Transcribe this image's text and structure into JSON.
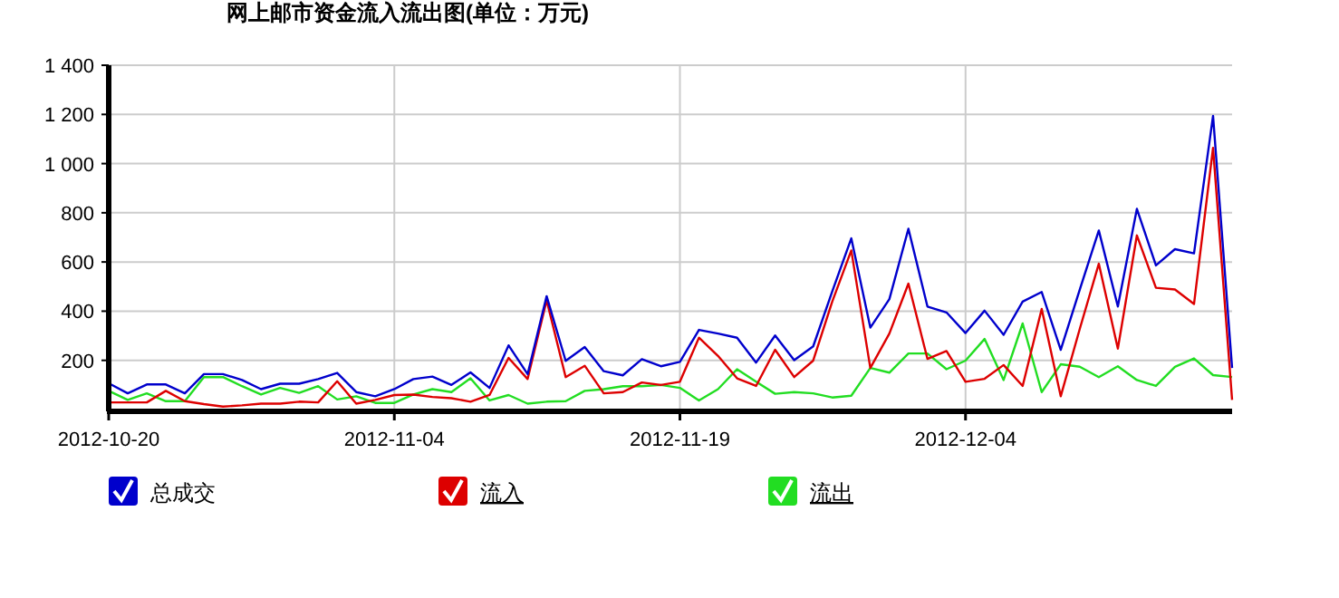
{
  "chart_data": {
    "type": "line",
    "title": "网上邮市资金流入流出图(单位：万元)",
    "x": [
      "2012-10-20",
      "2012-10-21",
      "2012-10-22",
      "2012-10-23",
      "2012-10-24",
      "2012-10-25",
      "2012-10-26",
      "2012-10-27",
      "2012-10-28",
      "2012-10-29",
      "2012-10-30",
      "2012-10-31",
      "2012-11-01",
      "2012-11-02",
      "2012-11-03",
      "2012-11-04",
      "2012-11-05",
      "2012-11-06",
      "2012-11-07",
      "2012-11-08",
      "2012-11-09",
      "2012-11-10",
      "2012-11-11",
      "2012-11-12",
      "2012-11-13",
      "2012-11-14",
      "2012-11-15",
      "2012-11-16",
      "2012-11-17",
      "2012-11-18",
      "2012-11-19",
      "2012-11-20",
      "2012-11-21",
      "2012-11-22",
      "2012-11-23",
      "2012-11-24",
      "2012-11-25",
      "2012-11-26",
      "2012-11-27",
      "2012-11-28",
      "2012-11-29",
      "2012-11-30",
      "2012-12-01",
      "2012-12-02",
      "2012-12-03",
      "2012-12-04",
      "2012-12-05",
      "2012-12-06",
      "2012-12-07",
      "2012-12-08",
      "2012-12-09",
      "2012-12-10",
      "2012-12-11",
      "2012-12-12",
      "2012-12-13",
      "2012-12-14",
      "2012-12-15",
      "2012-12-16",
      "2012-12-17",
      "2012-12-18"
    ],
    "series": [
      {
        "name": "总成交",
        "color": "#0000cc",
        "values": [
          107,
          66,
          102,
          102,
          66,
          144,
          144,
          120,
          83,
          105,
          105,
          124,
          149,
          71,
          54,
          83,
          124,
          134,
          100,
          151,
          88,
          261,
          144,
          461,
          198,
          254,
          156,
          139,
          205,
          176,
          194,
          324,
          309,
          292,
          191,
          301,
          201,
          257,
          480,
          696,
          333,
          449,
          735,
          419,
          395,
          311,
          402,
          304,
          439,
          478,
          243,
          488,
          728,
          419,
          816,
          586,
          652,
          635,
          1194,
          169
        ]
      },
      {
        "name": "流入",
        "color": "#dd0000",
        "values": [
          29,
          29,
          29,
          76,
          34,
          22,
          12,
          17,
          24,
          24,
          32,
          29,
          115,
          24,
          39,
          59,
          61,
          51,
          46,
          32,
          59,
          210,
          124,
          444,
          132,
          178,
          66,
          71,
          110,
          100,
          113,
          292,
          218,
          127,
          96,
          243,
          132,
          199,
          439,
          647,
          169,
          309,
          512,
          206,
          238,
          113,
          125,
          181,
          96,
          409,
          54,
          328,
          593,
          248,
          708,
          495,
          488,
          429,
          1064,
          39
        ]
      },
      {
        "name": "流出",
        "color": "#22dd22",
        "values": [
          76,
          39,
          66,
          34,
          34,
          132,
          132,
          95,
          61,
          88,
          68,
          95,
          41,
          54,
          27,
          27,
          61,
          83,
          71,
          127,
          37,
          59,
          24,
          32,
          34,
          76,
          83,
          95,
          95,
          100,
          88,
          37,
          83,
          164,
          113,
          64,
          71,
          66,
          49,
          56,
          169,
          150,
          228,
          228,
          164,
          199,
          287,
          120,
          350,
          71,
          184,
          174,
          132,
          176,
          120,
          96,
          174,
          208,
          140,
          132
        ]
      }
    ],
    "xlim": [
      "2012-10-20",
      "2012-12-18"
    ],
    "xticks": [
      "2012-10-20",
      "2012-11-04",
      "2012-11-19",
      "2012-12-04"
    ],
    "ylim": [
      0,
      1400
    ],
    "yticks": [
      200,
      400,
      600,
      800,
      {
        "value": 1000,
        "label": "1 000"
      },
      {
        "value": 1200,
        "label": "1 200"
      },
      {
        "value": 1400,
        "label": "1 400"
      }
    ],
    "grid": true,
    "legend": "bottom",
    "marker": "none",
    "line_style": "solid"
  }
}
